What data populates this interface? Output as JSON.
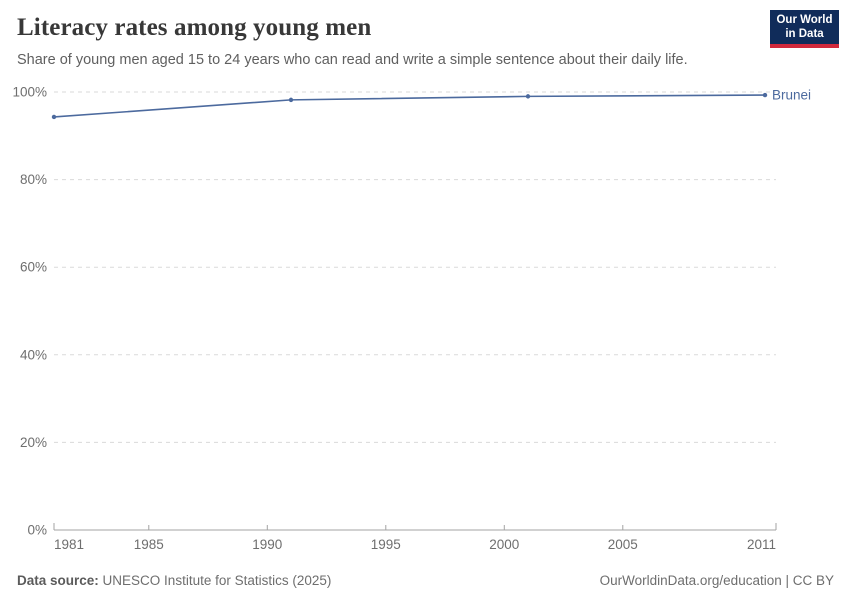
{
  "header": {
    "title": "Literacy rates among young men",
    "subtitle": "Share of young men aged 15 to 24 years who can read and write a simple sentence about their daily life.",
    "logo": {
      "line1": "Our World",
      "line2": "in Data"
    }
  },
  "chart_data": {
    "type": "line",
    "title": "Literacy rates among young men",
    "x": [
      1981,
      1991,
      2001,
      2011
    ],
    "series": [
      {
        "name": "Brunei",
        "values": [
          94.3,
          98.2,
          99.0,
          99.3
        ],
        "color": "#4c6a9e"
      }
    ],
    "xlabel": "",
    "ylabel": "",
    "xlim": [
      1981,
      2011
    ],
    "ylim": [
      0,
      100
    ],
    "x_ticks": [
      {
        "label": "1981",
        "value": 1981
      },
      {
        "label": "1985",
        "value": 1985
      },
      {
        "label": "1990",
        "value": 1990
      },
      {
        "label": "1995",
        "value": 1995
      },
      {
        "label": "2000",
        "value": 2000
      },
      {
        "label": "2005",
        "value": 2005
      },
      {
        "label": "2011",
        "value": 2011
      }
    ],
    "y_ticks": [
      {
        "label": "0%",
        "value": 0
      },
      {
        "label": "20%",
        "value": 20
      },
      {
        "label": "40%",
        "value": 40
      },
      {
        "label": "60%",
        "value": 60
      },
      {
        "label": "80%",
        "value": 80
      },
      {
        "label": "100%",
        "value": 100
      }
    ],
    "grid": "horizontal-dashed",
    "legend": "line-end-label"
  },
  "footer": {
    "source_label": "Data source:",
    "source_text": "UNESCO Institute for Statistics (2025)",
    "rights_text": "OurWorldinData.org/education | CC BY"
  },
  "colors": {
    "line": "#4c6a9e",
    "entity_label": "#4c6a9e",
    "grid": "#dadada",
    "axis": "#a3a3a3",
    "tick_text": "#6e6e6e",
    "title_text": "#383838",
    "subtitle_text": "#5f5f5f",
    "logo_bg": "#102c5a",
    "logo_stripe": "#d1293c"
  }
}
